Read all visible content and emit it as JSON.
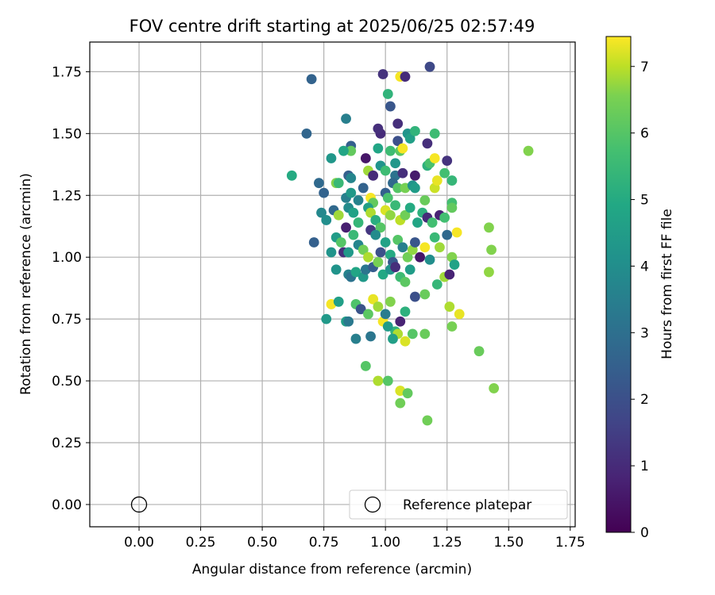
{
  "chart_data": {
    "type": "scatter",
    "title": "FOV centre drift starting at 2025/06/25 02:57:49",
    "xlabel": "Angular distance from reference (arcmin)",
    "ylabel": "Rotation from reference (arcmin)",
    "xlim": [
      -0.2,
      1.77
    ],
    "ylim": [
      -0.09,
      1.87
    ],
    "xticks": [
      0.0,
      0.25,
      0.5,
      0.75,
      1.0,
      1.25,
      1.5,
      1.75
    ],
    "yticks": [
      0.0,
      0.25,
      0.5,
      0.75,
      1.0,
      1.25,
      1.5,
      1.75
    ],
    "xtick_labels": [
      "0.00",
      "0.25",
      "0.50",
      "0.75",
      "1.00",
      "1.25",
      "1.50",
      "1.75"
    ],
    "ytick_labels": [
      "0.00",
      "0.25",
      "0.50",
      "0.75",
      "1.00",
      "1.25",
      "1.50",
      "1.75"
    ],
    "grid": true,
    "colormap": "viridis",
    "colorbar": {
      "label": "Hours from first FF file",
      "min": 0,
      "max": 7.45,
      "ticks": [
        0,
        1,
        2,
        3,
        4,
        5,
        6,
        7
      ],
      "tick_labels": [
        "0",
        "1",
        "2",
        "3",
        "4",
        "5",
        "6",
        "7"
      ]
    },
    "legend": {
      "position": "lower right",
      "entries": [
        {
          "label": "Reference platepar",
          "marker": "open-circle"
        }
      ]
    },
    "reference_point": {
      "x": 0.0,
      "y": 0.0
    },
    "series": [
      {
        "columns": [
          "x",
          "y",
          "hours"
        ],
        "points": [
          [
            0.99,
            1.74,
            1.2
          ],
          [
            1.18,
            1.77,
            1.8
          ],
          [
            0.7,
            1.72,
            2.6
          ],
          [
            1.06,
            1.73,
            7.4
          ],
          [
            1.08,
            1.73,
            1.0
          ],
          [
            1.01,
            1.66,
            5.3
          ],
          [
            1.02,
            1.61,
            2.2
          ],
          [
            1.05,
            1.54,
            1.1
          ],
          [
            0.68,
            1.5,
            2.7
          ],
          [
            0.84,
            1.56,
            3.5
          ],
          [
            0.98,
            1.5,
            1.0
          ],
          [
            0.97,
            1.52,
            1.1
          ],
          [
            1.05,
            1.47,
            2.0
          ],
          [
            1.09,
            1.5,
            4.2
          ],
          [
            1.1,
            1.48,
            4.6
          ],
          [
            1.12,
            1.51,
            5.3
          ],
          [
            1.2,
            1.5,
            5.6
          ],
          [
            1.17,
            1.46,
            1.1
          ],
          [
            0.86,
            1.45,
            2.5
          ],
          [
            0.86,
            1.43,
            6.2
          ],
          [
            0.78,
            1.4,
            4.3
          ],
          [
            0.83,
            1.43,
            4.8
          ],
          [
            1.02,
            1.43,
            5.6
          ],
          [
            0.97,
            1.44,
            4.8
          ],
          [
            1.06,
            1.43,
            6.1
          ],
          [
            1.07,
            1.44,
            7.4
          ],
          [
            0.92,
            1.4,
            0.5
          ],
          [
            1.04,
            1.38,
            4.3
          ],
          [
            1.25,
            1.39,
            1.2
          ],
          [
            1.58,
            1.43,
            6.6
          ],
          [
            0.62,
            1.33,
            5.0
          ],
          [
            0.73,
            1.3,
            2.8
          ],
          [
            0.85,
            1.33,
            2.5
          ],
          [
            0.86,
            1.32,
            3.7
          ],
          [
            0.93,
            1.35,
            6.8
          ],
          [
            0.98,
            1.37,
            4.2
          ],
          [
            1.0,
            1.35,
            5.6
          ],
          [
            1.04,
            1.33,
            3.1
          ],
          [
            1.07,
            1.34,
            1.1
          ],
          [
            1.12,
            1.33,
            0.6
          ],
          [
            1.17,
            1.37,
            5.2
          ],
          [
            1.18,
            1.38,
            5.8
          ],
          [
            1.2,
            1.4,
            7.4
          ],
          [
            1.24,
            1.34,
            5.7
          ],
          [
            1.27,
            1.31,
            5.4
          ],
          [
            0.95,
            1.33,
            1.0
          ],
          [
            0.75,
            1.26,
            2.6
          ],
          [
            0.8,
            1.3,
            6.6
          ],
          [
            0.81,
            1.3,
            5.5
          ],
          [
            0.84,
            1.24,
            3.5
          ],
          [
            0.86,
            1.26,
            4.4
          ],
          [
            0.89,
            1.23,
            3.6
          ],
          [
            0.91,
            1.28,
            2.6
          ],
          [
            0.94,
            1.24,
            7.4
          ],
          [
            0.95,
            1.22,
            6.2
          ],
          [
            1.0,
            1.26,
            2.5
          ],
          [
            1.01,
            1.24,
            5.8
          ],
          [
            1.03,
            1.3,
            2.8
          ],
          [
            1.05,
            1.28,
            6.0
          ],
          [
            1.08,
            1.28,
            6.5
          ],
          [
            1.11,
            1.29,
            4.2
          ],
          [
            1.12,
            1.28,
            4.5
          ],
          [
            1.16,
            1.23,
            6.3
          ],
          [
            1.2,
            1.28,
            7.1
          ],
          [
            1.21,
            1.31,
            7.3
          ],
          [
            1.27,
            1.22,
            5.7
          ],
          [
            0.74,
            1.18,
            3.8
          ],
          [
            0.76,
            1.15,
            4.0
          ],
          [
            0.79,
            1.19,
            2.8
          ],
          [
            0.81,
            1.17,
            6.8
          ],
          [
            0.84,
            1.12,
            0.7
          ],
          [
            0.85,
            1.2,
            3.9
          ],
          [
            0.87,
            1.18,
            4.7
          ],
          [
            0.89,
            1.14,
            5.4
          ],
          [
            0.93,
            1.2,
            4.6
          ],
          [
            0.94,
            1.18,
            6.9
          ],
          [
            0.96,
            1.15,
            5.1
          ],
          [
            0.98,
            1.12,
            6.0
          ],
          [
            1.0,
            1.19,
            7.2
          ],
          [
            1.02,
            1.17,
            6.7
          ],
          [
            1.04,
            1.21,
            5.5
          ],
          [
            1.06,
            1.15,
            7.0
          ],
          [
            1.08,
            1.17,
            6.4
          ],
          [
            1.1,
            1.2,
            5.0
          ],
          [
            1.13,
            1.14,
            4.8
          ],
          [
            1.15,
            1.18,
            5.2
          ],
          [
            1.17,
            1.16,
            1.0
          ],
          [
            1.19,
            1.14,
            5.7
          ],
          [
            1.22,
            1.17,
            0.8
          ],
          [
            1.24,
            1.16,
            5.7
          ],
          [
            1.27,
            1.2,
            6.2
          ],
          [
            1.29,
            1.1,
            7.4
          ],
          [
            1.42,
            1.12,
            6.6
          ],
          [
            0.71,
            1.06,
            2.5
          ],
          [
            0.78,
            1.02,
            4.2
          ],
          [
            0.8,
            1.08,
            4.5
          ],
          [
            0.82,
            1.06,
            6.0
          ],
          [
            0.83,
            1.02,
            1.1
          ],
          [
            0.85,
            1.02,
            4.4
          ],
          [
            0.87,
            1.09,
            5.5
          ],
          [
            0.89,
            1.05,
            3.7
          ],
          [
            0.91,
            1.03,
            6.4
          ],
          [
            0.93,
            1.0,
            6.9
          ],
          [
            0.94,
            1.11,
            1.3
          ],
          [
            0.96,
            1.09,
            3.9
          ],
          [
            0.98,
            1.02,
            2.0
          ],
          [
            1.0,
            1.06,
            4.7
          ],
          [
            1.02,
            1.01,
            5.0
          ],
          [
            1.03,
            0.98,
            2.3
          ],
          [
            1.05,
            1.07,
            6.0
          ],
          [
            1.07,
            1.04,
            3.5
          ],
          [
            1.09,
            1.0,
            6.4
          ],
          [
            1.11,
            1.03,
            6.7
          ],
          [
            1.12,
            1.06,
            2.2
          ],
          [
            1.14,
            1.0,
            0.5
          ],
          [
            1.16,
            1.04,
            7.4
          ],
          [
            1.18,
            0.99,
            4.0
          ],
          [
            1.2,
            1.08,
            5.5
          ],
          [
            1.22,
            1.04,
            6.8
          ],
          [
            1.25,
            1.09,
            2.8
          ],
          [
            1.27,
            1.0,
            6.6
          ],
          [
            1.28,
            0.97,
            4.7
          ],
          [
            1.43,
            1.03,
            6.6
          ],
          [
            0.8,
            0.95,
            4.2
          ],
          [
            0.85,
            0.93,
            3.6
          ],
          [
            0.86,
            0.92,
            3.1
          ],
          [
            0.88,
            0.94,
            4.8
          ],
          [
            0.91,
            0.92,
            4.4
          ],
          [
            0.92,
            0.95,
            3.2
          ],
          [
            0.95,
            0.96,
            2.4
          ],
          [
            0.97,
            0.98,
            6.5
          ],
          [
            0.99,
            0.93,
            4.9
          ],
          [
            1.02,
            0.95,
            4.2
          ],
          [
            1.04,
            0.96,
            1.1
          ],
          [
            1.06,
            0.92,
            5.6
          ],
          [
            1.08,
            0.9,
            6.1
          ],
          [
            1.1,
            0.95,
            4.5
          ],
          [
            1.12,
            0.84,
            2.0
          ],
          [
            1.16,
            0.85,
            6.3
          ],
          [
            1.21,
            0.89,
            5.4
          ],
          [
            1.24,
            0.92,
            6.8
          ],
          [
            1.26,
            0.93,
            0.8
          ],
          [
            1.42,
            0.94,
            6.7
          ],
          [
            0.78,
            0.81,
            7.4
          ],
          [
            0.81,
            0.82,
            4.6
          ],
          [
            0.88,
            0.81,
            5.9
          ],
          [
            0.9,
            0.79,
            2.1
          ],
          [
            0.93,
            0.77,
            6.1
          ],
          [
            0.95,
            0.83,
            7.3
          ],
          [
            0.97,
            0.8,
            6.8
          ],
          [
            0.99,
            0.74,
            7.4
          ],
          [
            1.0,
            0.77,
            3.4
          ],
          [
            1.02,
            0.82,
            6.6
          ],
          [
            1.04,
            0.7,
            5.3
          ],
          [
            1.05,
            0.69,
            6.9
          ],
          [
            1.06,
            0.74,
            0.8
          ],
          [
            1.08,
            0.66,
            7.2
          ],
          [
            1.11,
            0.69,
            6.0
          ],
          [
            1.16,
            0.69,
            6.3
          ],
          [
            1.26,
            0.8,
            6.9
          ],
          [
            1.27,
            0.72,
            6.5
          ],
          [
            1.3,
            0.77,
            7.3
          ],
          [
            0.76,
            0.75,
            4.4
          ],
          [
            0.84,
            0.74,
            4.6
          ],
          [
            0.85,
            0.74,
            3.3
          ],
          [
            0.88,
            0.67,
            3.5
          ],
          [
            0.94,
            0.68,
            3.2
          ],
          [
            1.01,
            0.72,
            4.5
          ],
          [
            1.03,
            0.67,
            4.6
          ],
          [
            1.08,
            0.78,
            5.2
          ],
          [
            1.38,
            0.62,
            6.3
          ],
          [
            0.92,
            0.56,
            6.0
          ],
          [
            0.97,
            0.5,
            6.9
          ],
          [
            1.01,
            0.5,
            6.0
          ],
          [
            1.06,
            0.46,
            7.2
          ],
          [
            1.06,
            0.41,
            6.4
          ],
          [
            1.09,
            0.45,
            6.2
          ],
          [
            1.17,
            0.34,
            6.4
          ],
          [
            1.44,
            0.47,
            6.6
          ]
        ]
      }
    ]
  }
}
